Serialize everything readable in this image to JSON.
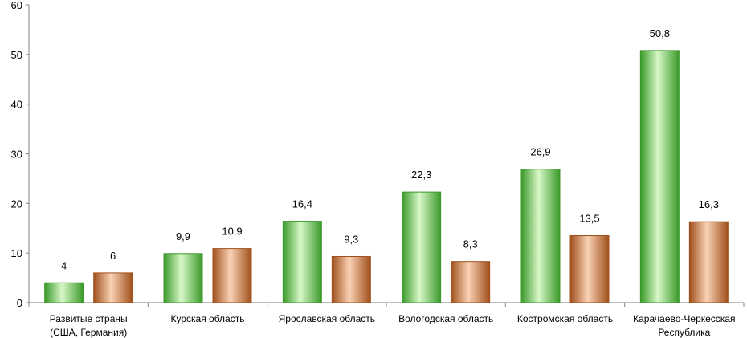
{
  "chart_data": {
    "type": "bar",
    "categories": [
      [
        "Развитые страны",
        "(США, Германия)"
      ],
      [
        "Курская область"
      ],
      [
        "Ярославская область"
      ],
      [
        "Вологодская область"
      ],
      [
        "Костромская область"
      ],
      [
        "Карачаево-Черкесская",
        "Республика"
      ]
    ],
    "series": [
      {
        "values": [
          4,
          9.9,
          16.4,
          22.3,
          26.9,
          50.8
        ],
        "labels": [
          "4",
          "9,9",
          "16,4",
          "22,3",
          "26,9",
          "50,8"
        ],
        "color": "#3a9a2a",
        "color_light": "#d8f7c8"
      },
      {
        "values": [
          6,
          10.9,
          9.3,
          8.3,
          13.5,
          16.3
        ],
        "labels": [
          "6",
          "10,9",
          "9,3",
          "8,3",
          "13,5",
          "16,3"
        ],
        "color": "#a0501c",
        "color_light": "#f9d2b4"
      }
    ],
    "title": "",
    "xlabel": "",
    "ylabel": "",
    "ylim": [
      0,
      60
    ],
    "yticks": [
      0,
      10,
      20,
      30,
      40,
      50,
      60
    ],
    "grid": false,
    "legend": "none"
  }
}
